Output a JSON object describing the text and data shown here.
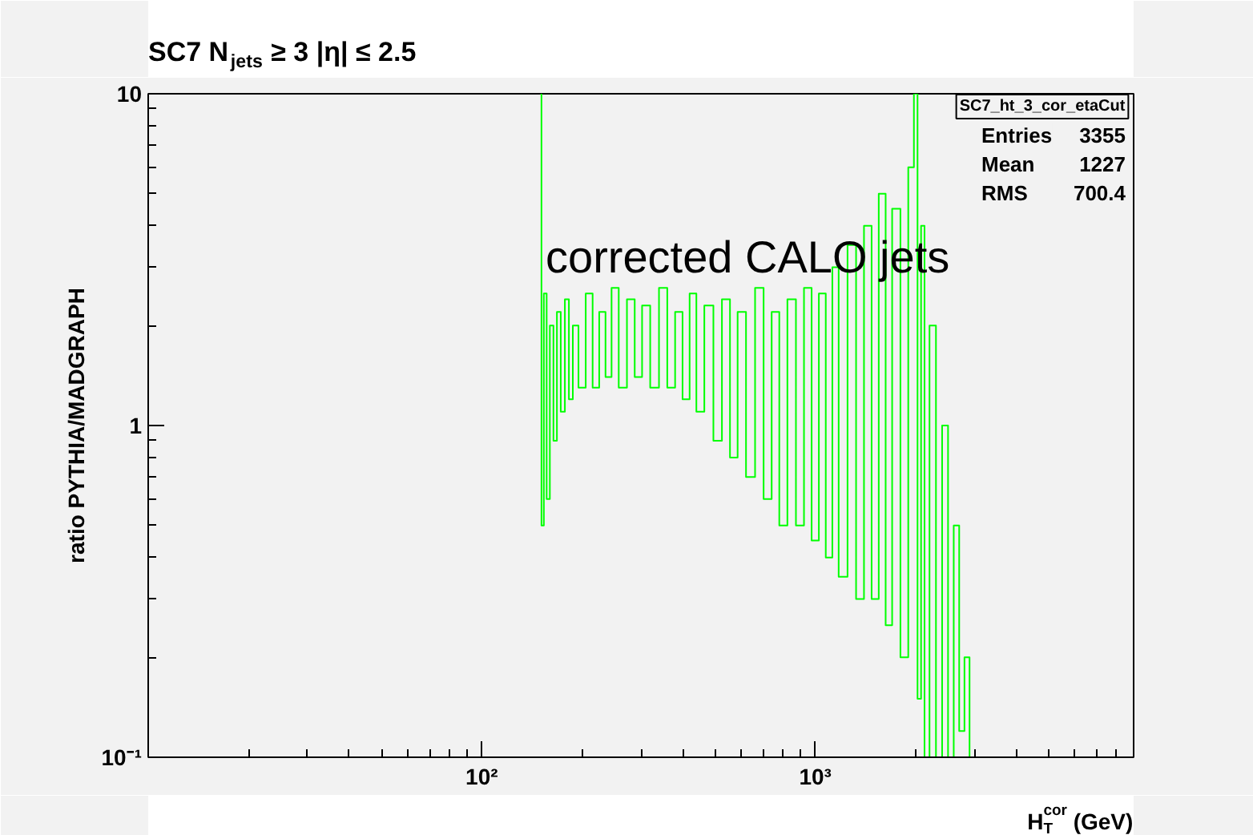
{
  "chart_data": {
    "type": "step",
    "title": "SC7 N$_{jets}$ ≥ 3 |η| ≤ 2.5",
    "xlabel": "H$^{cor}$$_{T}$ (GeV)",
    "ylabel": "ratio PYTHIA/MADGRAPH",
    "log": "xy",
    "xlim": [
      10,
      9000
    ],
    "ylim": [
      0.1,
      10
    ],
    "xticks": [
      {
        "value": 100,
        "label": "10²"
      },
      {
        "value": 1000,
        "label": "10³"
      }
    ],
    "yticks": [
      {
        "value": 0.1,
        "label": "10⁻¹"
      },
      1,
      10
    ],
    "grid": false,
    "marker": "none",
    "line_style": "solid",
    "annotations": [
      "corrected CALO jets",
      "SC7_ht_3_cor_etaCut",
      "Entries",
      "3355",
      "Mean",
      "1227",
      "RMS",
      "700.4"
    ],
    "series": [
      {
        "color": "#00ff00",
        "x": [
          150,
          152,
          155,
          158,
          162,
          166,
          170,
          175,
          180,
          185,
          190,
          200,
          210,
          220,
          230,
          240,
          250,
          265,
          280,
          295,
          310,
          330,
          350,
          370,
          390,
          410,
          430,
          450,
          480,
          510,
          540,
          570,
          600,
          640,
          680,
          720,
          760,
          800,
          850,
          900,
          950,
          1000,
          1050,
          1100,
          1150,
          1200,
          1300,
          1350,
          1450,
          1500,
          1600,
          1650,
          1750,
          1850,
          1950,
          2000,
          2050,
          2100,
          2150,
          2250,
          2350,
          2450,
          2550,
          2650,
          2750,
          2850,
          2950
        ],
        "values": [
          10,
          0.5,
          2.5,
          0.6,
          2.0,
          0.9,
          2.2,
          1.1,
          2.4,
          1.2,
          2.0,
          1.3,
          2.5,
          1.3,
          2.2,
          1.4,
          2.6,
          1.3,
          2.4,
          1.4,
          2.3,
          1.3,
          2.6,
          1.3,
          2.2,
          1.2,
          2.5,
          1.1,
          2.3,
          0.9,
          2.4,
          0.8,
          2.2,
          0.7,
          2.6,
          0.6,
          2.2,
          0.5,
          2.4,
          0.5,
          2.6,
          0.45,
          2.5,
          0.4,
          3.0,
          0.35,
          3.5,
          0.3,
          4.0,
          0.3,
          5.0,
          0.25,
          4.5,
          0.2,
          6.0,
          10,
          0.15,
          4.0,
          0.1,
          2.0,
          0.1,
          1.0,
          0.1,
          0.5,
          0.12,
          0.2,
          0.1
        ]
      }
    ]
  }
}
